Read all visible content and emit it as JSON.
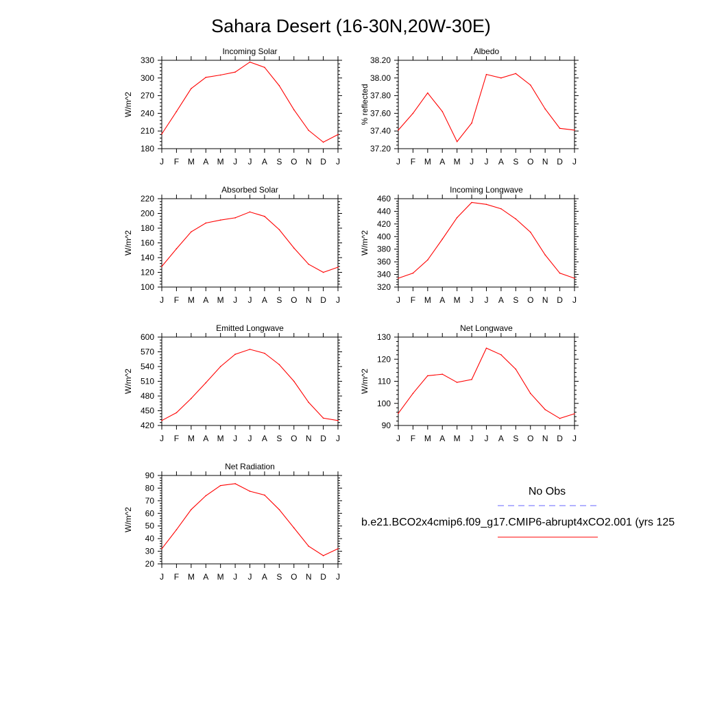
{
  "figure": {
    "title": "Sahara Desert (16-30N,20W-30E)"
  },
  "colors": {
    "model_line": "#ff0000",
    "obs_line": "#6666ff",
    "axes": "#000000",
    "background": "#ffffff"
  },
  "legend": {
    "obs_label": "No Obs",
    "model_label": "b.e21.BCO2x4cmip6.f09_g17.CMIP6-abrupt4xCO2.001 (yrs 125"
  },
  "chart_data": [
    {
      "id": "incoming-solar",
      "type": "line",
      "title": "Incoming Solar",
      "ylabel": "W/m^2",
      "x": [
        "J",
        "F",
        "M",
        "A",
        "M",
        "J",
        "J",
        "A",
        "S",
        "O",
        "N",
        "D",
        "J"
      ],
      "ylim": [
        180,
        330
      ],
      "yticks": [
        180,
        210,
        240,
        270,
        300,
        330
      ],
      "ytick_labels": [
        "180",
        "210",
        "240",
        "270",
        "300",
        "330"
      ],
      "series": [
        {
          "values": [
            205,
            243,
            282,
            301,
            305,
            310,
            327,
            318,
            287,
            246,
            211,
            191,
            204
          ]
        }
      ]
    },
    {
      "id": "albedo",
      "type": "line",
      "title": "Albedo",
      "ylabel": "% reflected",
      "x": [
        "J",
        "F",
        "M",
        "A",
        "M",
        "J",
        "J",
        "A",
        "S",
        "O",
        "N",
        "D",
        "J"
      ],
      "ylim": [
        37.2,
        38.2
      ],
      "yticks": [
        37.2,
        37.4,
        37.6,
        37.8,
        38.0,
        38.2
      ],
      "ytick_labels": [
        "37.20",
        "37.40",
        "37.60",
        "37.80",
        "38.00",
        "38.20"
      ],
      "series": [
        {
          "values": [
            37.41,
            37.6,
            37.83,
            37.62,
            37.28,
            37.49,
            38.04,
            38.0,
            38.05,
            37.92,
            37.65,
            37.43,
            37.41
          ]
        }
      ]
    },
    {
      "id": "absorbed-solar",
      "type": "line",
      "title": "Absorbed Solar",
      "ylabel": "W/m^2",
      "x": [
        "J",
        "F",
        "M",
        "A",
        "M",
        "J",
        "J",
        "A",
        "S",
        "O",
        "N",
        "D",
        "J"
      ],
      "ylim": [
        100,
        220
      ],
      "yticks": [
        100,
        120,
        140,
        160,
        180,
        200,
        220
      ],
      "ytick_labels": [
        "100",
        "120",
        "140",
        "160",
        "180",
        "200",
        "220"
      ],
      "series": [
        {
          "values": [
            128,
            152,
            175,
            187,
            191,
            194,
            202,
            196,
            178,
            153,
            131,
            120,
            127
          ]
        }
      ]
    },
    {
      "id": "incoming-longwave",
      "type": "line",
      "title": "Incoming Longwave",
      "ylabel": "W/m^2",
      "x": [
        "J",
        "F",
        "M",
        "A",
        "M",
        "J",
        "J",
        "A",
        "S",
        "O",
        "N",
        "D",
        "J"
      ],
      "ylim": [
        320,
        460
      ],
      "yticks": [
        320,
        340,
        360,
        380,
        400,
        420,
        440,
        460
      ],
      "ytick_labels": [
        "320",
        "340",
        "360",
        "380",
        "400",
        "420",
        "440",
        "460"
      ],
      "series": [
        {
          "values": [
            334,
            342,
            363,
            396,
            430,
            454,
            451,
            444,
            428,
            407,
            371,
            342,
            334
          ]
        }
      ]
    },
    {
      "id": "emitted-longwave",
      "type": "line",
      "title": "Emitted Longwave",
      "ylabel": "W/m^2",
      "x": [
        "J",
        "F",
        "M",
        "A",
        "M",
        "J",
        "J",
        "A",
        "S",
        "O",
        "N",
        "D",
        "J"
      ],
      "ylim": [
        420,
        600
      ],
      "yticks": [
        420,
        450,
        480,
        510,
        540,
        570,
        600
      ],
      "ytick_labels": [
        "420",
        "450",
        "480",
        "510",
        "540",
        "570",
        "600"
      ],
      "series": [
        {
          "values": [
            430,
            446,
            475,
            507,
            540,
            565,
            575,
            567,
            544,
            510,
            467,
            435,
            430
          ]
        }
      ]
    },
    {
      "id": "net-longwave",
      "type": "line",
      "title": "Net Longwave",
      "ylabel": "W/m^2",
      "x": [
        "J",
        "F",
        "M",
        "A",
        "M",
        "J",
        "J",
        "A",
        "S",
        "O",
        "N",
        "D",
        "J"
      ],
      "ylim": [
        90,
        130
      ],
      "yticks": [
        90,
        100,
        110,
        120,
        130
      ],
      "ytick_labels": [
        "90",
        "100",
        "110",
        "120",
        "130"
      ],
      "series": [
        {
          "values": [
            95.5,
            104.5,
            112.5,
            113.2,
            109.5,
            110.8,
            125,
            122,
            115.5,
            104.5,
            97.2,
            93.2,
            95.3
          ]
        }
      ]
    },
    {
      "id": "net-radiation",
      "type": "line",
      "title": "Net Radiation",
      "ylabel": "W/m^2",
      "x": [
        "J",
        "F",
        "M",
        "A",
        "M",
        "J",
        "J",
        "A",
        "S",
        "O",
        "N",
        "D",
        "J"
      ],
      "ylim": [
        20,
        90
      ],
      "yticks": [
        20,
        30,
        40,
        50,
        60,
        70,
        80,
        90
      ],
      "ytick_labels": [
        "20",
        "30",
        "40",
        "50",
        "60",
        "70",
        "80",
        "90"
      ],
      "series": [
        {
          "values": [
            32,
            47,
            63,
            74,
            82,
            83.5,
            77.5,
            74.5,
            63,
            48.5,
            34,
            26.5,
            32
          ]
        }
      ]
    }
  ]
}
